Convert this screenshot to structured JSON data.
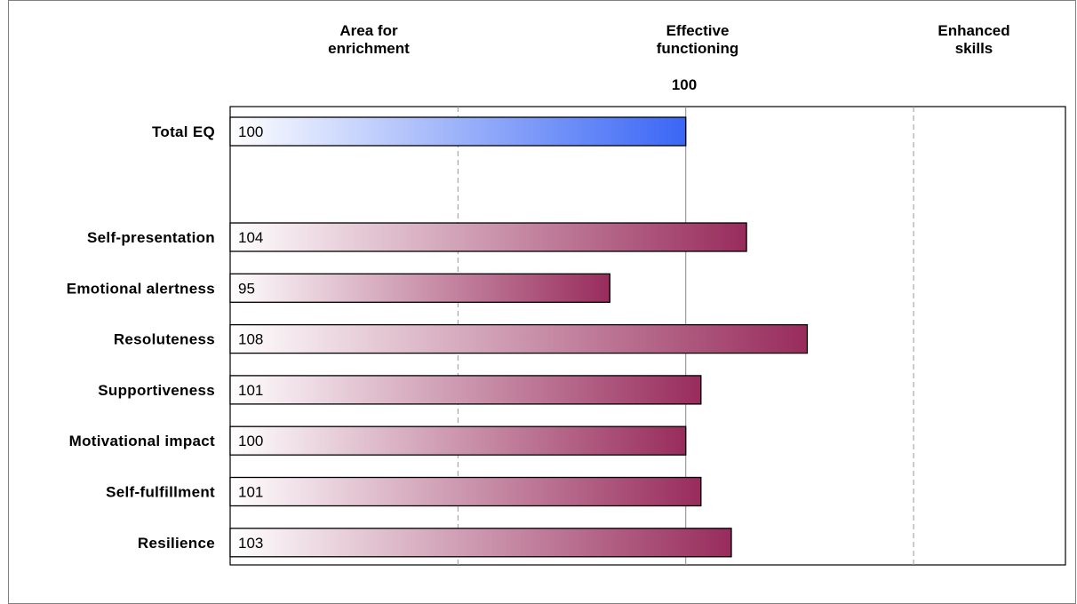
{
  "chart_data": {
    "type": "bar",
    "orientation": "horizontal",
    "bands": [
      "Area for\nenrichment",
      "Effective\nfunctioning",
      "Enhanced\nskills"
    ],
    "reference_value": "100",
    "xlim": [
      70,
      125
    ],
    "categories": [
      "Total EQ",
      "Self-presentation",
      "Emotional alertness",
      "Resoluteness",
      "Supportiveness",
      "Motivational impact",
      "Self-fulfillment",
      "Resilience"
    ],
    "values": [
      100,
      104,
      95,
      108,
      101,
      100,
      101,
      103
    ],
    "colors": {
      "total": "#3a66f5",
      "subscales": "#982c5c",
      "gradient_start": "#ffffff"
    }
  }
}
